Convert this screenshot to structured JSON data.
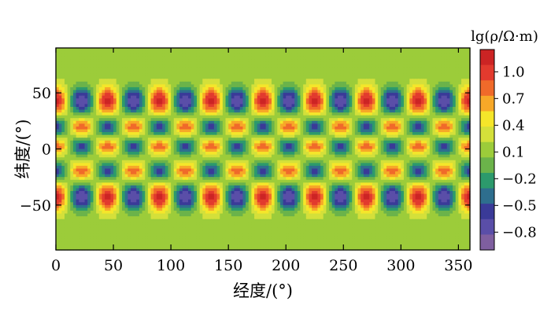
{
  "chart_data": {
    "type": "heatmap",
    "title": "",
    "xlabel": "经度/(°)",
    "ylabel": "纬度/(°)",
    "xlim": [
      0,
      360
    ],
    "ylim": [
      -90,
      90
    ],
    "xticks": [
      0,
      50,
      100,
      150,
      200,
      250,
      300,
      350
    ],
    "xtick_labels": [
      "0",
      "50",
      "100",
      "150",
      "200",
      "250",
      "300",
      "350"
    ],
    "yticks": [
      50,
      0,
      -50
    ],
    "ytick_labels": [
      "50",
      "0",
      "−50"
    ],
    "colorbar": {
      "title": "lg(ρ/Ω·m)",
      "min": -1.0,
      "max": 1.25,
      "ticks": [
        1.0,
        0.7,
        0.4,
        0.1,
        -0.2,
        -0.5,
        -0.8
      ],
      "tick_labels": [
        "1.0",
        "0.7",
        "0.4",
        "0.1",
        "−0.2",
        "−0.5",
        "−0.8"
      ],
      "colors": [
        "#7f5fa0",
        "#5a4ea8",
        "#3a3a98",
        "#2e6e8e",
        "#2c9a6c",
        "#6bb34a",
        "#9ccc3a",
        "#d4e03a",
        "#f5e62a",
        "#f7a828",
        "#f06a2a",
        "#e23a2e",
        "#cc2424"
      ]
    },
    "field": {
      "description": "lg(rho) = 0.15 + A * cos(8*lon) * P(lat)",
      "zonal_wavenumber": 8,
      "background_value": 0.15,
      "amplitude_outer_band": 0.97,
      "amplitude_inner_band": 0.72,
      "band_latitudes": [
        43,
        20,
        2,
        -20,
        -43
      ],
      "band_signs": [
        1,
        -1,
        1,
        -1,
        1
      ],
      "band_latitude_half_widths": [
        12,
        8,
        7,
        8,
        12
      ]
    }
  }
}
